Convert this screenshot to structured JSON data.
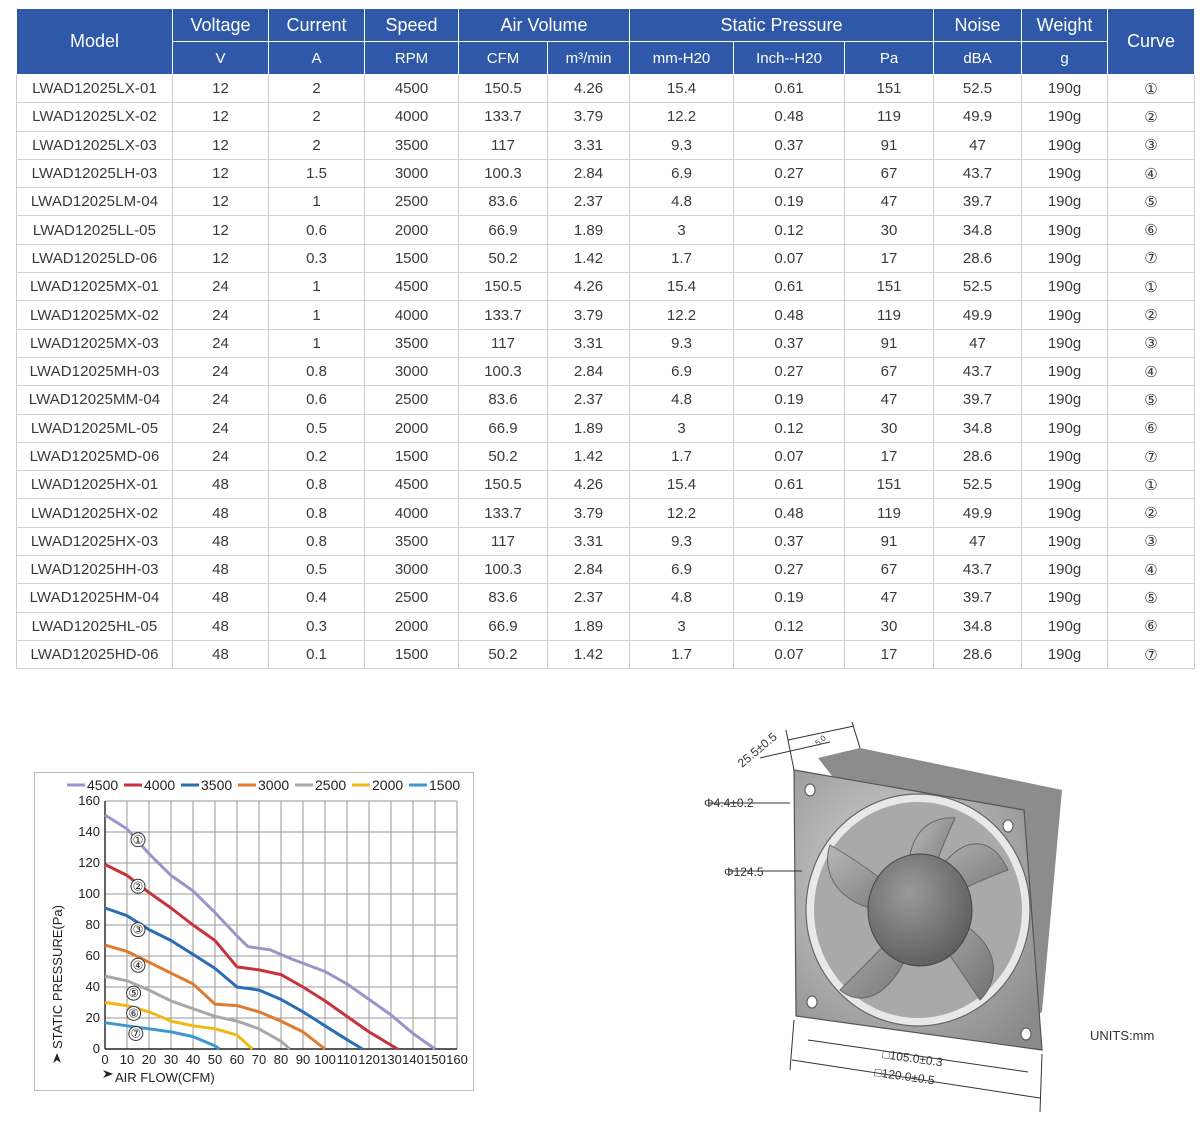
{
  "table": {
    "group_headers": {
      "model": "Model",
      "voltage": "Voltage",
      "current": "Current",
      "speed": "Speed",
      "air_volume": "Air Volume",
      "static_pressure": "Static Pressure",
      "noise": "Noise",
      "weight": "Weight",
      "curve": "Curve"
    },
    "unit_headers": {
      "voltage": "V",
      "current": "A",
      "speed": "RPM",
      "cfm": "CFM",
      "m3min": "m³/min",
      "mmh2o": "mm-H20",
      "inchh2o": "Inch--H20",
      "pa": "Pa",
      "dba": "dBA",
      "g": "g"
    },
    "rows": [
      [
        "LWAD12025LX-01",
        "12",
        "2",
        "4500",
        "150.5",
        "4.26",
        "15.4",
        "0.61",
        "151",
        "52.5",
        "190g",
        "①"
      ],
      [
        "LWAD12025LX-02",
        "12",
        "2",
        "4000",
        "133.7",
        "3.79",
        "12.2",
        "0.48",
        "119",
        "49.9",
        "190g",
        "②"
      ],
      [
        "LWAD12025LX-03",
        "12",
        "2",
        "3500",
        "117",
        "3.31",
        "9.3",
        "0.37",
        "91",
        "47",
        "190g",
        "③"
      ],
      [
        "LWAD12025LH-03",
        "12",
        "1.5",
        "3000",
        "100.3",
        "2.84",
        "6.9",
        "0.27",
        "67",
        "43.7",
        "190g",
        "④"
      ],
      [
        "LWAD12025LM-04",
        "12",
        "1",
        "2500",
        "83.6",
        "2.37",
        "4.8",
        "0.19",
        "47",
        "39.7",
        "190g",
        "⑤"
      ],
      [
        "LWAD12025LL-05",
        "12",
        "0.6",
        "2000",
        "66.9",
        "1.89",
        "3",
        "0.12",
        "30",
        "34.8",
        "190g",
        "⑥"
      ],
      [
        "LWAD12025LD-06",
        "12",
        "0.3",
        "1500",
        "50.2",
        "1.42",
        "1.7",
        "0.07",
        "17",
        "28.6",
        "190g",
        "⑦"
      ],
      [
        "LWAD12025MX-01",
        "24",
        "1",
        "4500",
        "150.5",
        "4.26",
        "15.4",
        "0.61",
        "151",
        "52.5",
        "190g",
        "①"
      ],
      [
        "LWAD12025MX-02",
        "24",
        "1",
        "4000",
        "133.7",
        "3.79",
        "12.2",
        "0.48",
        "119",
        "49.9",
        "190g",
        "②"
      ],
      [
        "LWAD12025MX-03",
        "24",
        "1",
        "3500",
        "117",
        "3.31",
        "9.3",
        "0.37",
        "91",
        "47",
        "190g",
        "③"
      ],
      [
        "LWAD12025MH-03",
        "24",
        "0.8",
        "3000",
        "100.3",
        "2.84",
        "6.9",
        "0.27",
        "67",
        "43.7",
        "190g",
        "④"
      ],
      [
        "LWAD12025MM-04",
        "24",
        "0.6",
        "2500",
        "83.6",
        "2.37",
        "4.8",
        "0.19",
        "47",
        "39.7",
        "190g",
        "⑤"
      ],
      [
        "LWAD12025ML-05",
        "24",
        "0.5",
        "2000",
        "66.9",
        "1.89",
        "3",
        "0.12",
        "30",
        "34.8",
        "190g",
        "⑥"
      ],
      [
        "LWAD12025MD-06",
        "24",
        "0.2",
        "1500",
        "50.2",
        "1.42",
        "1.7",
        "0.07",
        "17",
        "28.6",
        "190g",
        "⑦"
      ],
      [
        "LWAD12025HX-01",
        "48",
        "0.8",
        "4500",
        "150.5",
        "4.26",
        "15.4",
        "0.61",
        "151",
        "52.5",
        "190g",
        "①"
      ],
      [
        "LWAD12025HX-02",
        "48",
        "0.8",
        "4000",
        "133.7",
        "3.79",
        "12.2",
        "0.48",
        "119",
        "49.9",
        "190g",
        "②"
      ],
      [
        "LWAD12025HX-03",
        "48",
        "0.8",
        "3500",
        "117",
        "3.31",
        "9.3",
        "0.37",
        "91",
        "47",
        "190g",
        "③"
      ],
      [
        "LWAD12025HH-03",
        "48",
        "0.5",
        "3000",
        "100.3",
        "2.84",
        "6.9",
        "0.27",
        "67",
        "43.7",
        "190g",
        "④"
      ],
      [
        "LWAD12025HM-04",
        "48",
        "0.4",
        "2500",
        "83.6",
        "2.37",
        "4.8",
        "0.19",
        "47",
        "39.7",
        "190g",
        "⑤"
      ],
      [
        "LWAD12025HL-05",
        "48",
        "0.3",
        "2000",
        "66.9",
        "1.89",
        "3",
        "0.12",
        "30",
        "34.8",
        "190g",
        "⑥"
      ],
      [
        "LWAD12025HD-06",
        "48",
        "0.1",
        "1500",
        "50.2",
        "1.42",
        "1.7",
        "0.07",
        "17",
        "28.6",
        "190g",
        "⑦"
      ]
    ]
  },
  "chart_data": {
    "type": "line",
    "xlabel": "AIR FLOW(CFM)",
    "ylabel": "STATIC PRESSURE(Pa)",
    "xlim": [
      0,
      160
    ],
    "ylim": [
      0,
      160
    ],
    "xticks": [
      0,
      10,
      20,
      30,
      40,
      50,
      60,
      70,
      80,
      90,
      100,
      110,
      120,
      130,
      140,
      150,
      160
    ],
    "yticks": [
      0,
      20,
      40,
      60,
      80,
      100,
      120,
      140,
      160
    ],
    "grid": true,
    "legend_position": "top",
    "series": [
      {
        "name": "4500",
        "marker": "①",
        "color": "#9b93c9",
        "points": [
          [
            0,
            151
          ],
          [
            10,
            142
          ],
          [
            20,
            126
          ],
          [
            30,
            112
          ],
          [
            40,
            102
          ],
          [
            50,
            88
          ],
          [
            60,
            73
          ],
          [
            65,
            66
          ],
          [
            75,
            64
          ],
          [
            85,
            58
          ],
          [
            100,
            50
          ],
          [
            110,
            42
          ],
          [
            120,
            32
          ],
          [
            130,
            22
          ],
          [
            140,
            10
          ],
          [
            150,
            0
          ]
        ]
      },
      {
        "name": "4000",
        "marker": "②",
        "color": "#c8323b",
        "points": [
          [
            0,
            119
          ],
          [
            10,
            112
          ],
          [
            20,
            101
          ],
          [
            30,
            91
          ],
          [
            40,
            80
          ],
          [
            50,
            70
          ],
          [
            60,
            53
          ],
          [
            70,
            51
          ],
          [
            80,
            48
          ],
          [
            90,
            40
          ],
          [
            100,
            31
          ],
          [
            110,
            21
          ],
          [
            120,
            11
          ],
          [
            133,
            0
          ]
        ]
      },
      {
        "name": "3500",
        "marker": "③",
        "color": "#2a6db5",
        "points": [
          [
            0,
            91
          ],
          [
            10,
            86
          ],
          [
            20,
            77
          ],
          [
            30,
            70
          ],
          [
            40,
            61
          ],
          [
            50,
            52
          ],
          [
            60,
            40
          ],
          [
            70,
            38
          ],
          [
            80,
            32
          ],
          [
            90,
            24
          ],
          [
            100,
            15
          ],
          [
            110,
            6
          ],
          [
            117,
            0
          ]
        ]
      },
      {
        "name": "3000",
        "marker": "④",
        "color": "#e07b2e",
        "points": [
          [
            0,
            67
          ],
          [
            10,
            63
          ],
          [
            20,
            56
          ],
          [
            30,
            49
          ],
          [
            40,
            42
          ],
          [
            50,
            29
          ],
          [
            60,
            28
          ],
          [
            70,
            24
          ],
          [
            80,
            18
          ],
          [
            90,
            11
          ],
          [
            100,
            0
          ]
        ]
      },
      {
        "name": "2500",
        "marker": "⑤",
        "color": "#a8a8a8",
        "points": [
          [
            0,
            47
          ],
          [
            10,
            44
          ],
          [
            20,
            38
          ],
          [
            30,
            31
          ],
          [
            40,
            26
          ],
          [
            50,
            21
          ],
          [
            60,
            18
          ],
          [
            70,
            13
          ],
          [
            80,
            5
          ],
          [
            84,
            0
          ]
        ]
      },
      {
        "name": "2000",
        "marker": "⑥",
        "color": "#f2b817",
        "points": [
          [
            0,
            30
          ],
          [
            10,
            28
          ],
          [
            20,
            24
          ],
          [
            30,
            18
          ],
          [
            40,
            15
          ],
          [
            50,
            13
          ],
          [
            60,
            9
          ],
          [
            67,
            0
          ]
        ]
      },
      {
        "name": "1500",
        "marker": "⑦",
        "color": "#3e97cf",
        "points": [
          [
            0,
            17
          ],
          [
            10,
            15
          ],
          [
            20,
            13
          ],
          [
            30,
            11
          ],
          [
            40,
            8
          ],
          [
            50,
            2
          ],
          [
            52,
            0
          ]
        ]
      }
    ],
    "marker_positions": [
      [
        15,
        135
      ],
      [
        15,
        105
      ],
      [
        15,
        77
      ],
      [
        15,
        54
      ],
      [
        13,
        36
      ],
      [
        13,
        23
      ],
      [
        14,
        10
      ]
    ]
  },
  "drawing": {
    "dims": [
      "25.5±0.5",
      "5.0",
      "Φ4.4±0.2",
      "Φ124.5",
      "□105.0±0.3",
      "□120.0±0.5"
    ],
    "units": "UNITS:mm"
  }
}
